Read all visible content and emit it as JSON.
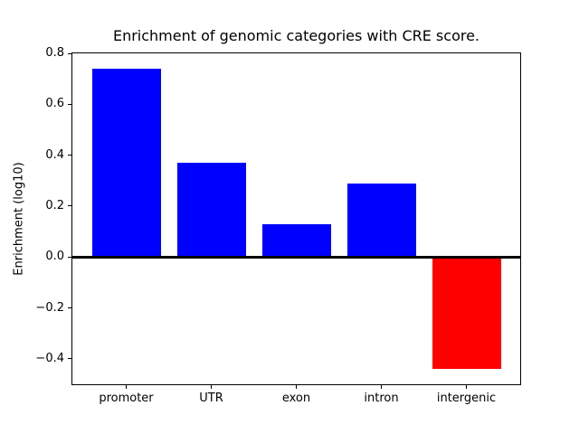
{
  "figure": {
    "title": "Enrichment of genomic categories with CRE score.",
    "ylabel": "Enrichment (log10)"
  },
  "chart_data": {
    "type": "bar",
    "title": "Enrichment of genomic categories with CRE score.",
    "xlabel": "",
    "ylabel": "Enrichment (log10)",
    "categories": [
      "promoter",
      "UTR",
      "exon",
      "intron",
      "intergenic"
    ],
    "values": [
      0.74,
      0.37,
      0.13,
      0.29,
      -0.44
    ],
    "positive_color": "#0000ff",
    "negative_color": "#ff0000",
    "bar_colors": [
      "#0000ff",
      "#0000ff",
      "#0000ff",
      "#0000ff",
      "#ff0000"
    ],
    "ylim": [
      -0.5,
      0.8
    ],
    "yticks": [
      0.8,
      0.6,
      0.4,
      0.2,
      0.0,
      -0.2,
      -0.4
    ],
    "zero_line": true,
    "grid": false,
    "legend": "none",
    "axis_color": "#000000",
    "background_color": "#ffffff"
  }
}
